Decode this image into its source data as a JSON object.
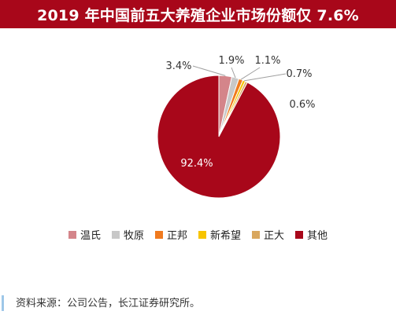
{
  "title": "2019 年中国前五大养殖企业市场份额仅 7.6%",
  "source": "资料来源：公司公告，长江证券研究所。",
  "chart_data": {
    "type": "pie",
    "title": "2019 年中国前五大养殖企业市场份额仅 7.6%",
    "legend_position": "bottom",
    "slices": [
      {
        "label": "温氏",
        "value": 3.4,
        "value_label": "3.4%",
        "color": "#d4858a"
      },
      {
        "label": "牧原",
        "value": 1.9,
        "value_label": "1.9%",
        "color": "#c8c8c8"
      },
      {
        "label": "正邦",
        "value": 1.1,
        "value_label": "1.1%",
        "color": "#f07a1e"
      },
      {
        "label": "新希望",
        "value": 0.7,
        "value_label": "0.7%",
        "color": "#f7c400"
      },
      {
        "label": "正大",
        "value": 0.6,
        "value_label": "0.6%",
        "color": "#d9a75e"
      },
      {
        "label": "其他",
        "value": 92.4,
        "value_label": "92.4%",
        "color": "#a8071a"
      }
    ]
  }
}
